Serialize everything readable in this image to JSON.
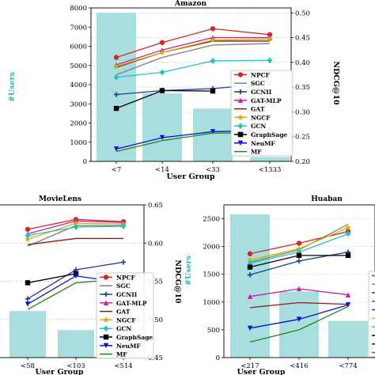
{
  "chart_data": [
    {
      "id": "amazon",
      "type": "bar+line",
      "title": "Amazon",
      "xlabel": "User Group",
      "ylabel_left": "#Users",
      "ylabel_right": "NDCG@10",
      "categories": [
        "<7",
        "<14",
        "<33",
        "<1333"
      ],
      "ylim_left": [
        0,
        8000
      ],
      "yticks_left": [
        "0",
        "1000",
        "2000",
        "3000",
        "4000",
        "5000",
        "6000",
        "7000",
        "8000"
      ],
      "ylim_right": [
        0.2,
        0.51
      ],
      "yticks_right": [
        "0.20",
        "0.25",
        "0.30",
        "0.35",
        "0.40",
        "0.45",
        "0.50"
      ],
      "bars": [
        7750,
        3550,
        2750,
        230
      ],
      "series": [
        {
          "name": "NPCF",
          "color": "#d62728",
          "marker": "circle",
          "values": [
            0.41,
            0.44,
            0.468,
            0.456
          ]
        },
        {
          "name": "SGC",
          "color": "#7f7f7f",
          "marker": "none",
          "values": [
            0.375,
            0.41,
            0.435,
            0.438
          ]
        },
        {
          "name": "GCNII",
          "color": "#1f3b99",
          "marker": "plus",
          "values": [
            0.335,
            0.343,
            0.347,
            0.357
          ]
        },
        {
          "name": "GAT-MLP",
          "color": "#c71fa8",
          "marker": "triangle-up",
          "values": [
            0.395,
            0.425,
            0.45,
            0.45
          ]
        },
        {
          "name": "GAT",
          "color": "#8b1a1a",
          "marker": "none",
          "values": [
            0.39,
            0.42,
            0.443,
            0.443
          ]
        },
        {
          "name": "NGCF",
          "color": "#d4b000",
          "marker": "star",
          "values": [
            0.392,
            0.42,
            0.445,
            0.447
          ]
        },
        {
          "name": "GCN",
          "color": "#20c4c0",
          "marker": "diamond",
          "values": [
            0.37,
            0.38,
            0.403,
            0.404
          ]
        },
        {
          "name": "GraphSage",
          "color": "#000000",
          "marker": "square",
          "values": [
            0.307,
            0.343,
            0.342,
            null
          ]
        },
        {
          "name": "NeuMF",
          "color": "#1010d0",
          "marker": "triangle-down",
          "values": [
            0.225,
            0.248,
            0.26,
            0.263
          ]
        },
        {
          "name": "MF",
          "color": "#1a8a1a",
          "marker": "none",
          "values": [
            0.22,
            0.242,
            0.257,
            0.258
          ]
        }
      ]
    },
    {
      "id": "movielens",
      "type": "bar+line",
      "title": "MovieLens",
      "xlabel": "User Group",
      "ylabel_right": "NDCG@10",
      "categories": [
        "<58",
        "<103",
        "<514"
      ],
      "ylim_right": [
        0.45,
        0.65
      ],
      "yticks_right": [
        "0.45",
        "0.50",
        "0.55",
        "0.60",
        "0.65"
      ],
      "bars": [
        0.511,
        0.486,
        0.462
      ],
      "series": [
        {
          "name": "NPCF",
          "color": "#d62728",
          "marker": "circle",
          "values": [
            0.618,
            0.631,
            0.628
          ]
        },
        {
          "name": "SGC",
          "color": "#7f7f7f",
          "marker": "none",
          "values": [
            0.596,
            0.623,
            0.623
          ]
        },
        {
          "name": "GCNII",
          "color": "#1f3b99",
          "marker": "plus",
          "values": [
            0.527,
            0.565,
            0.575
          ]
        },
        {
          "name": "GAT-MLP",
          "color": "#c71fa8",
          "marker": "triangle-up",
          "values": [
            0.612,
            0.629,
            0.627
          ]
        },
        {
          "name": "GAT",
          "color": "#8b1a1a",
          "marker": "none",
          "values": [
            0.598,
            0.606,
            0.606
          ]
        },
        {
          "name": "NGCF",
          "color": "#d4b000",
          "marker": "star",
          "values": [
            0.605,
            0.626,
            0.625
          ]
        },
        {
          "name": "GCN",
          "color": "#20c4c0",
          "marker": "diamond",
          "values": [
            0.61,
            0.621,
            0.622
          ]
        },
        {
          "name": "GraphSage",
          "color": "#000000",
          "marker": "square",
          "values": [
            0.548,
            0.56,
            null
          ]
        },
        {
          "name": "NeuMF",
          "color": "#1010d0",
          "marker": "triangle-down",
          "values": [
            0.52,
            0.557,
            0.548
          ]
        },
        {
          "name": "MF",
          "color": "#1a8a1a",
          "marker": "none",
          "values": [
            0.513,
            0.548,
            0.553
          ]
        }
      ]
    },
    {
      "id": "huaban",
      "type": "bar+line",
      "title": "Huaban",
      "xlabel": "User Group",
      "ylabel_left": "#Users",
      "categories": [
        "<217",
        "<416",
        "<774"
      ],
      "ylim_left": [
        0,
        2750
      ],
      "yticks_left": [
        "0",
        "500",
        "1000",
        "1500",
        "2000",
        "2500"
      ],
      "bars": [
        2580,
        1190,
        660
      ],
      "series": [
        {
          "name": "NPCF",
          "color": "#d62728",
          "marker": "circle",
          "values": [
            1870,
            2060,
            2270
          ]
        },
        {
          "name": "SGC",
          "color": "#7f7f7f",
          "marker": "none",
          "values": [
            1720,
            1940,
            2400
          ]
        },
        {
          "name": "GCNII",
          "color": "#1f3b99",
          "marker": "plus",
          "values": [
            1490,
            1740,
            1900
          ]
        },
        {
          "name": "GAT-MLP",
          "color": "#c71fa8",
          "marker": "triangle-up",
          "values": [
            1100,
            1240,
            1130
          ]
        },
        {
          "name": "GAT",
          "color": "#8b1a1a",
          "marker": "none",
          "values": [
            900,
            990,
            960
          ]
        },
        {
          "name": "NGCF",
          "color": "#d4b000",
          "marker": "star",
          "values": [
            1760,
            1960,
            2340
          ]
        },
        {
          "name": "GCN",
          "color": "#20c4c0",
          "marker": "diamond",
          "values": [
            1700,
            1900,
            2230
          ]
        },
        {
          "name": "GraphSage",
          "color": "#000000",
          "marker": "square",
          "values": [
            1630,
            1840,
            1840
          ]
        },
        {
          "name": "NeuMF",
          "color": "#1010d0",
          "marker": "triangle-down",
          "values": [
            530,
            690,
            950
          ]
        },
        {
          "name": "MF",
          "color": "#1a8a1a",
          "marker": "none",
          "values": [
            280,
            500,
            920
          ]
        }
      ]
    }
  ]
}
